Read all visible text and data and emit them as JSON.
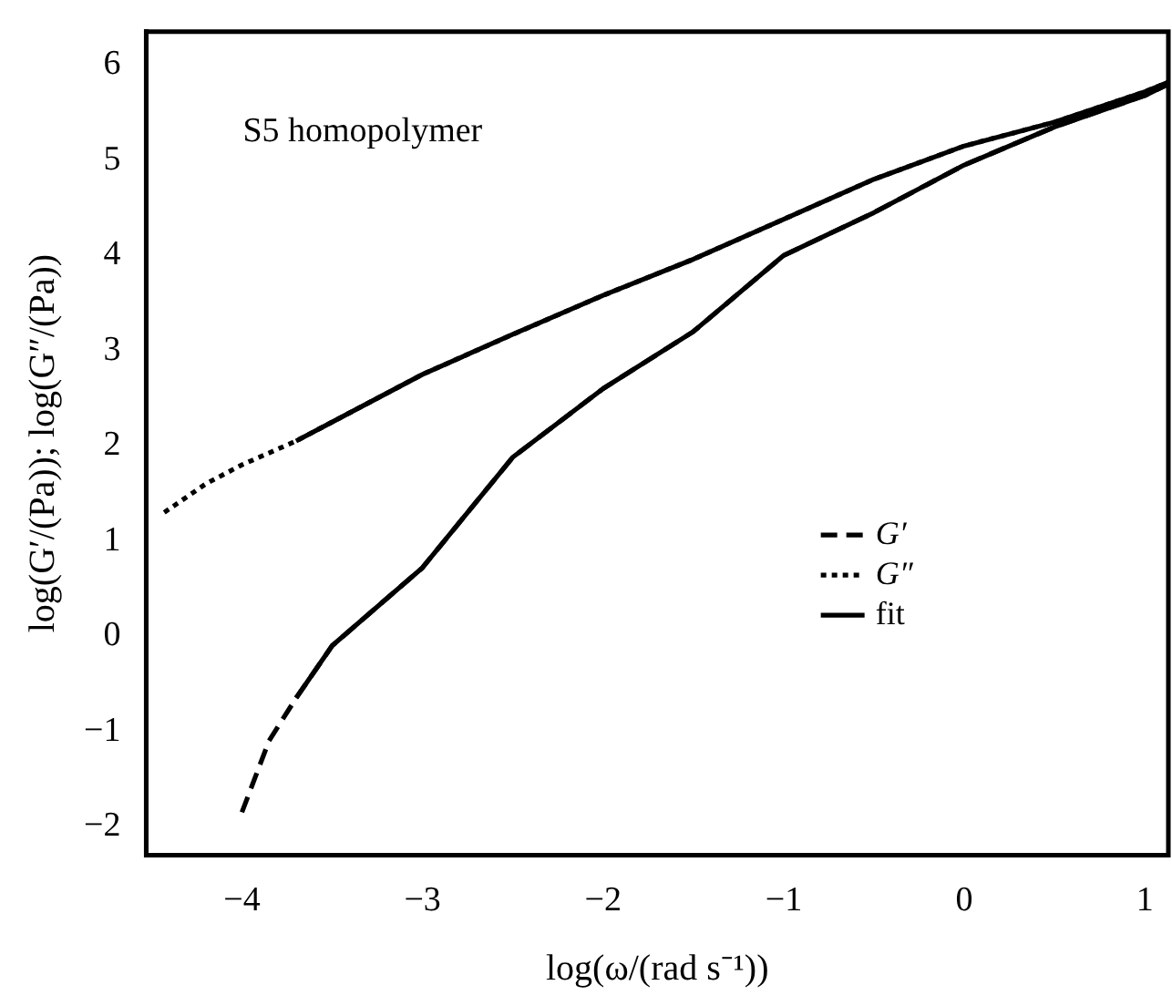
{
  "chart_data": {
    "type": "line",
    "xlabel": "log(ω/(rad s⁻¹))",
    "ylabel": "log(G′/(Pa)); log(G″/(Pa))",
    "annotations": [
      "S5 homopolymer"
    ],
    "xlim": [
      -4.53,
      1.13
    ],
    "xticks": [
      -4,
      -3,
      -2,
      -1,
      0,
      1
    ],
    "ylim": [
      -2.3,
      6.35
    ],
    "yticks": [
      -2,
      -1,
      0,
      1,
      2,
      3,
      4,
      5,
      6
    ],
    "grid": false,
    "legend": "right",
    "marker": "none",
    "series": [
      {
        "name": "G′",
        "color": "#000000",
        "line_style": "dashed",
        "x": [
          -4.0,
          -3.85,
          -3.7,
          -3.5,
          -3.0,
          -2.5,
          -2.0,
          -1.5,
          -1.0,
          -0.5,
          0,
          0.5,
          1.0,
          1.13
        ],
        "values": [
          -1.85,
          -1.1,
          -0.65,
          -0.1,
          0.72,
          1.88,
          2.6,
          3.2,
          4.0,
          4.45,
          4.95,
          5.35,
          5.68,
          5.8
        ]
      },
      {
        "name": "G″",
        "color": "#000000",
        "line_style": "dotted",
        "x": [
          -4.43,
          -4.2,
          -4.0,
          -3.7,
          -3.5,
          -3.0,
          -2.5,
          -2.0,
          -1.5,
          -1.0,
          -0.5,
          0,
          0.5,
          1.0,
          1.13
        ],
        "values": [
          1.3,
          1.6,
          1.8,
          2.05,
          2.25,
          2.75,
          3.17,
          3.58,
          3.96,
          4.38,
          4.8,
          5.15,
          5.4,
          5.72,
          5.82
        ]
      },
      {
        "name": "fit",
        "color": "#000000",
        "line_style": "solid",
        "x": [
          -3.7,
          -3.5,
          -3.0,
          -2.5,
          -2.0,
          -1.5,
          -1.0,
          -0.5,
          0,
          0.5,
          1.0,
          1.13
        ],
        "values": [
          2.05,
          2.25,
          2.75,
          3.17,
          3.58,
          3.96,
          4.38,
          4.8,
          5.15,
          5.4,
          5.72,
          5.82
        ]
      },
      {
        "color": "#000000",
        "line_style": "solid",
        "x": [
          -3.7,
          -3.5,
          -3.0,
          -2.5,
          -2.0,
          -1.5,
          -1.0,
          -0.5,
          0,
          0.5,
          1.0,
          1.13
        ],
        "values": [
          -0.65,
          -0.1,
          0.72,
          1.88,
          2.6,
          3.2,
          4.0,
          4.45,
          4.95,
          5.35,
          5.68,
          5.8
        ]
      }
    ]
  }
}
